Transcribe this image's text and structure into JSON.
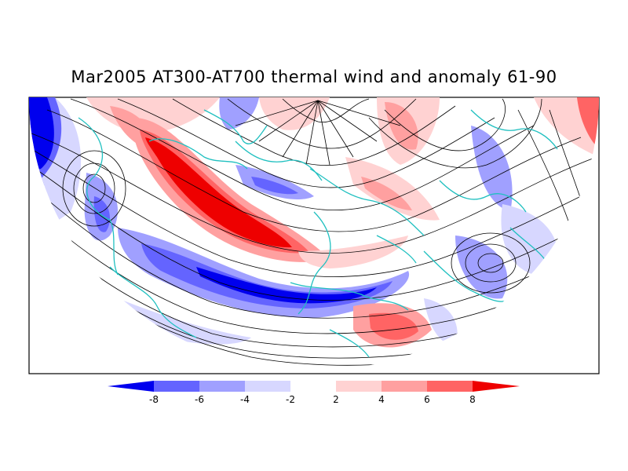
{
  "title": "Mar2005 AT300-AT700 thermal wind and anomaly 61-90",
  "colorbar": {
    "levels": [
      "-8",
      "-6",
      "-4",
      "-2",
      "2",
      "4",
      "6",
      "8"
    ],
    "colors": [
      "#0000ee",
      "#6464ff",
      "#a0a0ff",
      "#d7d7ff",
      "#ffffff",
      "#ffd2d2",
      "#ffa0a0",
      "#ff6464",
      "#ee0000"
    ]
  },
  "map": {
    "projection": "polar-stereographic-north",
    "field": "thermal wind streamlines with temperature anomaly shading",
    "coastline_color": "#20c0c0",
    "streamline_color": "#000000"
  }
}
